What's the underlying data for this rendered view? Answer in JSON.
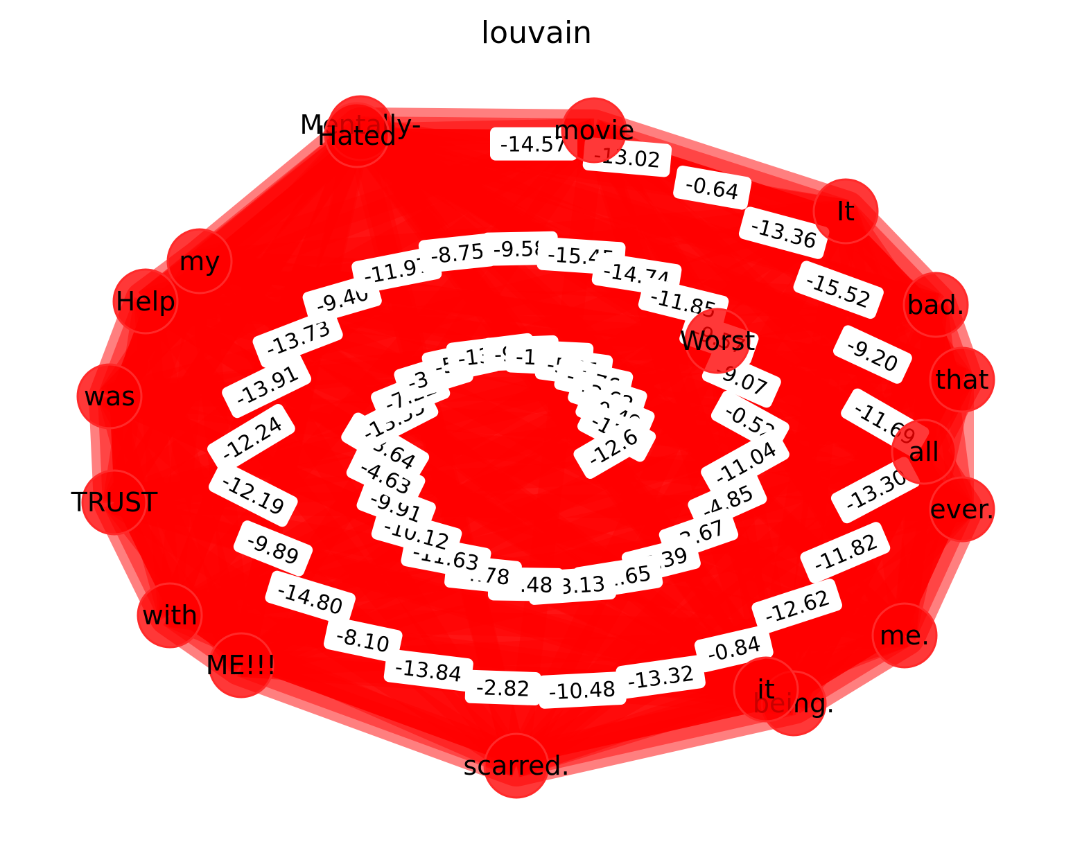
{
  "title": "louvain",
  "colors": {
    "node": "#ff0000",
    "edge": "#ff0000",
    "label_box": "#ffffff"
  },
  "nodes": [
    {
      "id": "Mentally-",
      "label": "Mentally-"
    },
    {
      "id": "Hated",
      "label": "Hated"
    },
    {
      "id": "movie",
      "label": "movie"
    },
    {
      "id": "It",
      "label": "It"
    },
    {
      "id": "bad.",
      "label": "bad."
    },
    {
      "id": "that",
      "label": "that"
    },
    {
      "id": "all",
      "label": "all"
    },
    {
      "id": "ever.",
      "label": "ever."
    },
    {
      "id": "me.",
      "label": "me."
    },
    {
      "id": "being.",
      "label": "being."
    },
    {
      "id": "it",
      "label": "it"
    },
    {
      "id": "scarred.",
      "label": "scarred."
    },
    {
      "id": "ME!!!",
      "label": "ME!!!"
    },
    {
      "id": "with",
      "label": "with"
    },
    {
      "id": "TRUST",
      "label": "TRUST"
    },
    {
      "id": "was",
      "label": "was"
    },
    {
      "id": "Help",
      "label": "Help"
    },
    {
      "id": "my",
      "label": "my"
    },
    {
      "id": "Worst",
      "label": "Worst"
    }
  ],
  "edge_labels": [
    "-14.57",
    "-13.02",
    "-0.64",
    "-13.36",
    "-15.52",
    "-9.20",
    "-11.69",
    "-13.30",
    "-11.82",
    "-12.62",
    "-0.84",
    "-13.32",
    "-10.48",
    "-2.82",
    "-13.84",
    "-8.10",
    "-14.80",
    "-9.89",
    "-12.19",
    "-12.24",
    "-13.91",
    "-13.73",
    "-9.40",
    "-11.97",
    "-8.75",
    "-9.58",
    "-15.45",
    "-14.74",
    "-11.85",
    "-9.57",
    "-9.07",
    "-0.52",
    "-11.04",
    "-4.85",
    "-3.67",
    "-7.39",
    "-11.65",
    "-13.13",
    "-0.48",
    "-4.78",
    "-11.63",
    "-10.12",
    "-9.91",
    "-4.63",
    "-13.64",
    "-13.55",
    "-7.22",
    "-3.06",
    "-5.52",
    "-13.48",
    "-9.20",
    "-11.14",
    "-5.11",
    "-4.76",
    "-3.62",
    "-0.49",
    "-11.8",
    "-12.6"
  ]
}
